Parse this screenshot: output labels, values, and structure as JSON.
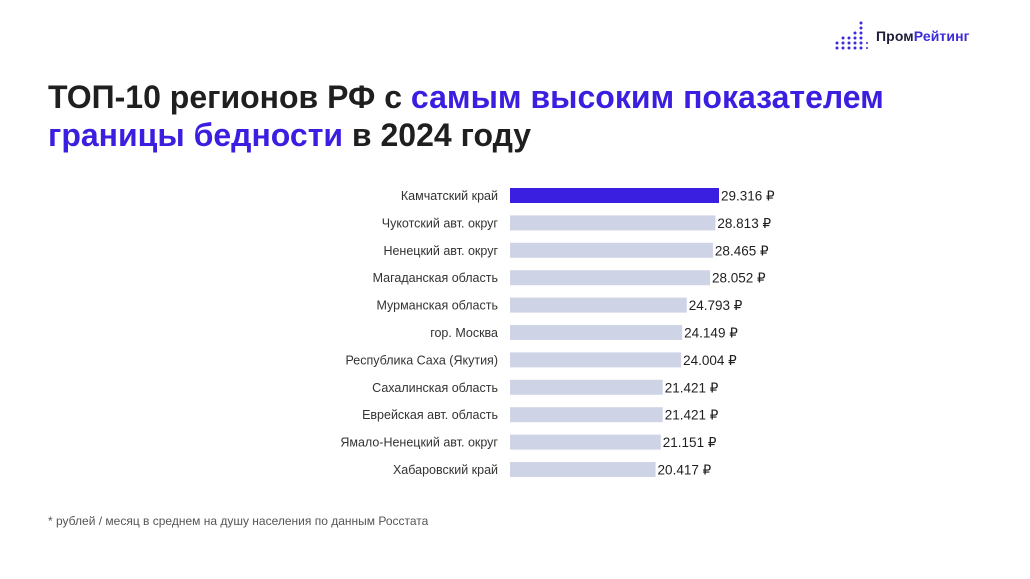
{
  "header": {
    "logo_part1": "Пром",
    "logo_part2": "Рейтинг",
    "logo_icon": "dot-grid-chart-icon"
  },
  "title": {
    "part1": "ТОП-10 регионов РФ с ",
    "part2_highlight": "самым высоким показателем границы бедности",
    "part3": " в 2024 году"
  },
  "colors": {
    "highlight_bar": "#3b1fe0",
    "regular_bar": "#cfd3e6",
    "title_accent": "#3b1fe0",
    "logo_accent": "#3b2bd8"
  },
  "chart_data": {
    "type": "bar",
    "orientation": "horizontal",
    "title": "ТОП-10 регионов РФ с самым высоким показателем границы бедности в 2024 году",
    "categories": [
      "Камчатский край",
      "Чукотский авт. округ",
      "Ненецкий авт. округ",
      "Магаданская область",
      "Мурманская область",
      "гор. Москва",
      "Республика Саха (Якутия)",
      "Сахалинская область",
      "Еврейская авт. область",
      "Ямало-Ненецкий авт. округ",
      "Хабаровский край"
    ],
    "values": [
      29316,
      28813,
      28465,
      28052,
      24793,
      24149,
      24004,
      21421,
      21421,
      21151,
      20417
    ],
    "value_labels": [
      "29.316 ₽",
      "28.813 ₽",
      "28.465 ₽",
      "28.052 ₽",
      "24.793 ₽",
      "24.149 ₽",
      "24.004 ₽",
      "21.421 ₽",
      "21.421 ₽",
      "21.151 ₽",
      "20.417 ₽"
    ],
    "highlighted_index": 0,
    "xlim": [
      0,
      29316
    ],
    "grid": false,
    "legend": "none"
  },
  "footnote": "* рублей / месяц в среднем на душу населения по данным Росстата"
}
